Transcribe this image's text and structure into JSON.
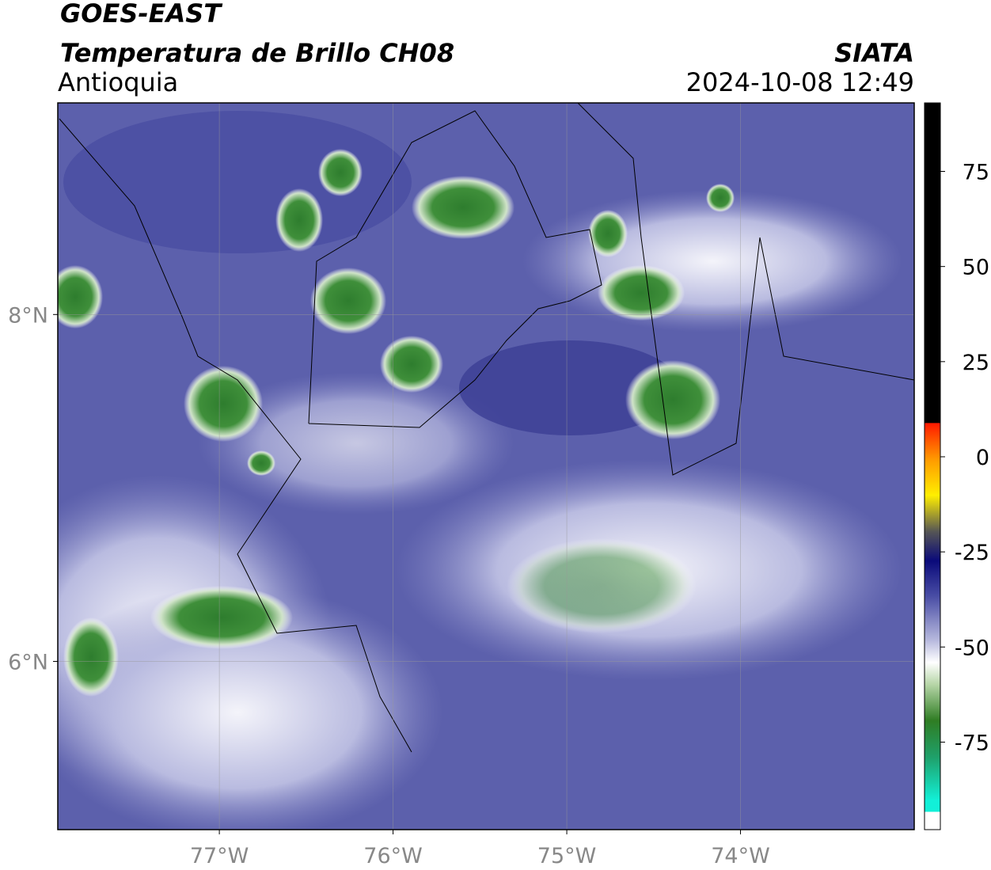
{
  "header": {
    "title": "GOES-EAST",
    "subtitle": "Temperatura de Brillo CH08",
    "region": "Antioquia",
    "source": "SIATA",
    "datetime": "2024-10-08 12:49"
  },
  "map": {
    "xlim": [
      -77.93,
      -73.0
    ],
    "ylim": [
      5.03,
      9.22
    ],
    "xticks": [
      {
        "value": -77,
        "label": "77°W"
      },
      {
        "value": -76,
        "label": "76°W"
      },
      {
        "value": -75,
        "label": "75°W"
      },
      {
        "value": -74,
        "label": "74°W"
      }
    ],
    "yticks": [
      {
        "value": 8,
        "label": "8°N"
      },
      {
        "value": 6,
        "label": "6°N"
      }
    ],
    "grid": true
  },
  "colorbar": {
    "lim": [
      -98,
      93
    ],
    "ticks": [
      -75,
      -50,
      -25,
      0,
      25,
      50,
      75
    ]
  }
}
